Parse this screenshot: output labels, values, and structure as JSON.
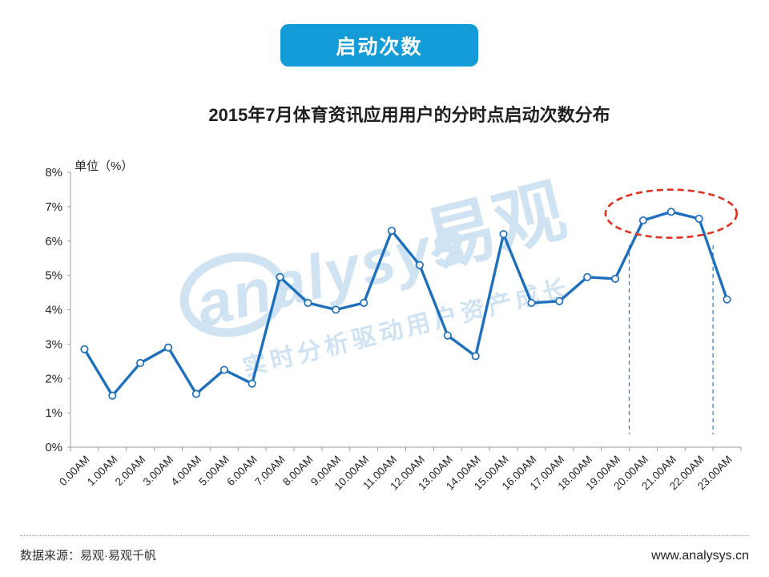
{
  "header": {
    "badge_label": "启动次数"
  },
  "chart_data": {
    "type": "line",
    "title": "2015年7月体育资讯应用用户的分时点启动次数分布",
    "ylabel": "单位（%）",
    "xlabel": "",
    "x": [
      "0.00AM",
      "1.00AM",
      "2.00AM",
      "3.00AM",
      "4.00AM",
      "5.00AM",
      "6.00AM",
      "7.00AM",
      "8.00AM",
      "9.00AM",
      "10.00AM",
      "11.00AM",
      "12.00AM",
      "13.00AM",
      "14.00AM",
      "15.00AM",
      "16.00AM",
      "17.00AM",
      "18.00AM",
      "19.00AM",
      "20.00AM",
      "21.00AM",
      "22.00AM",
      "23.00AM"
    ],
    "series": [
      {
        "name": "启动次数",
        "values": [
          2.85,
          1.5,
          2.45,
          2.9,
          1.55,
          2.25,
          1.85,
          4.95,
          4.2,
          4.0,
          4.2,
          6.3,
          5.3,
          3.25,
          2.65,
          6.2,
          4.2,
          4.25,
          4.95,
          4.9,
          6.6,
          6.85,
          6.65,
          4.3
        ]
      }
    ],
    "ylim": [
      0,
      8
    ],
    "ytick_step": 1,
    "ytick_suffix": "%",
    "grid": false,
    "legend": false,
    "annotations": {
      "circled_category_indices": [
        20,
        21,
        22
      ],
      "guide_boundary_indices": [
        20,
        23
      ]
    }
  },
  "watermark": {
    "brand_en": "analysys",
    "brand_cn": "易观",
    "slogan": "实时分析驱动用户资产成长"
  },
  "footer": {
    "source": "数据来源：易观·易观千帆",
    "website": "www.analysys.cn"
  },
  "colors": {
    "badge_bg": "#149CD8",
    "line": "#1F70BC",
    "marker_fill": "#FFFFFF",
    "highlight_ellipse": "#E0301E",
    "guide_line": "#3D7EBF",
    "watermark": "#CDE2F3",
    "axis": "#9E9E9E",
    "label": "#262626"
  }
}
